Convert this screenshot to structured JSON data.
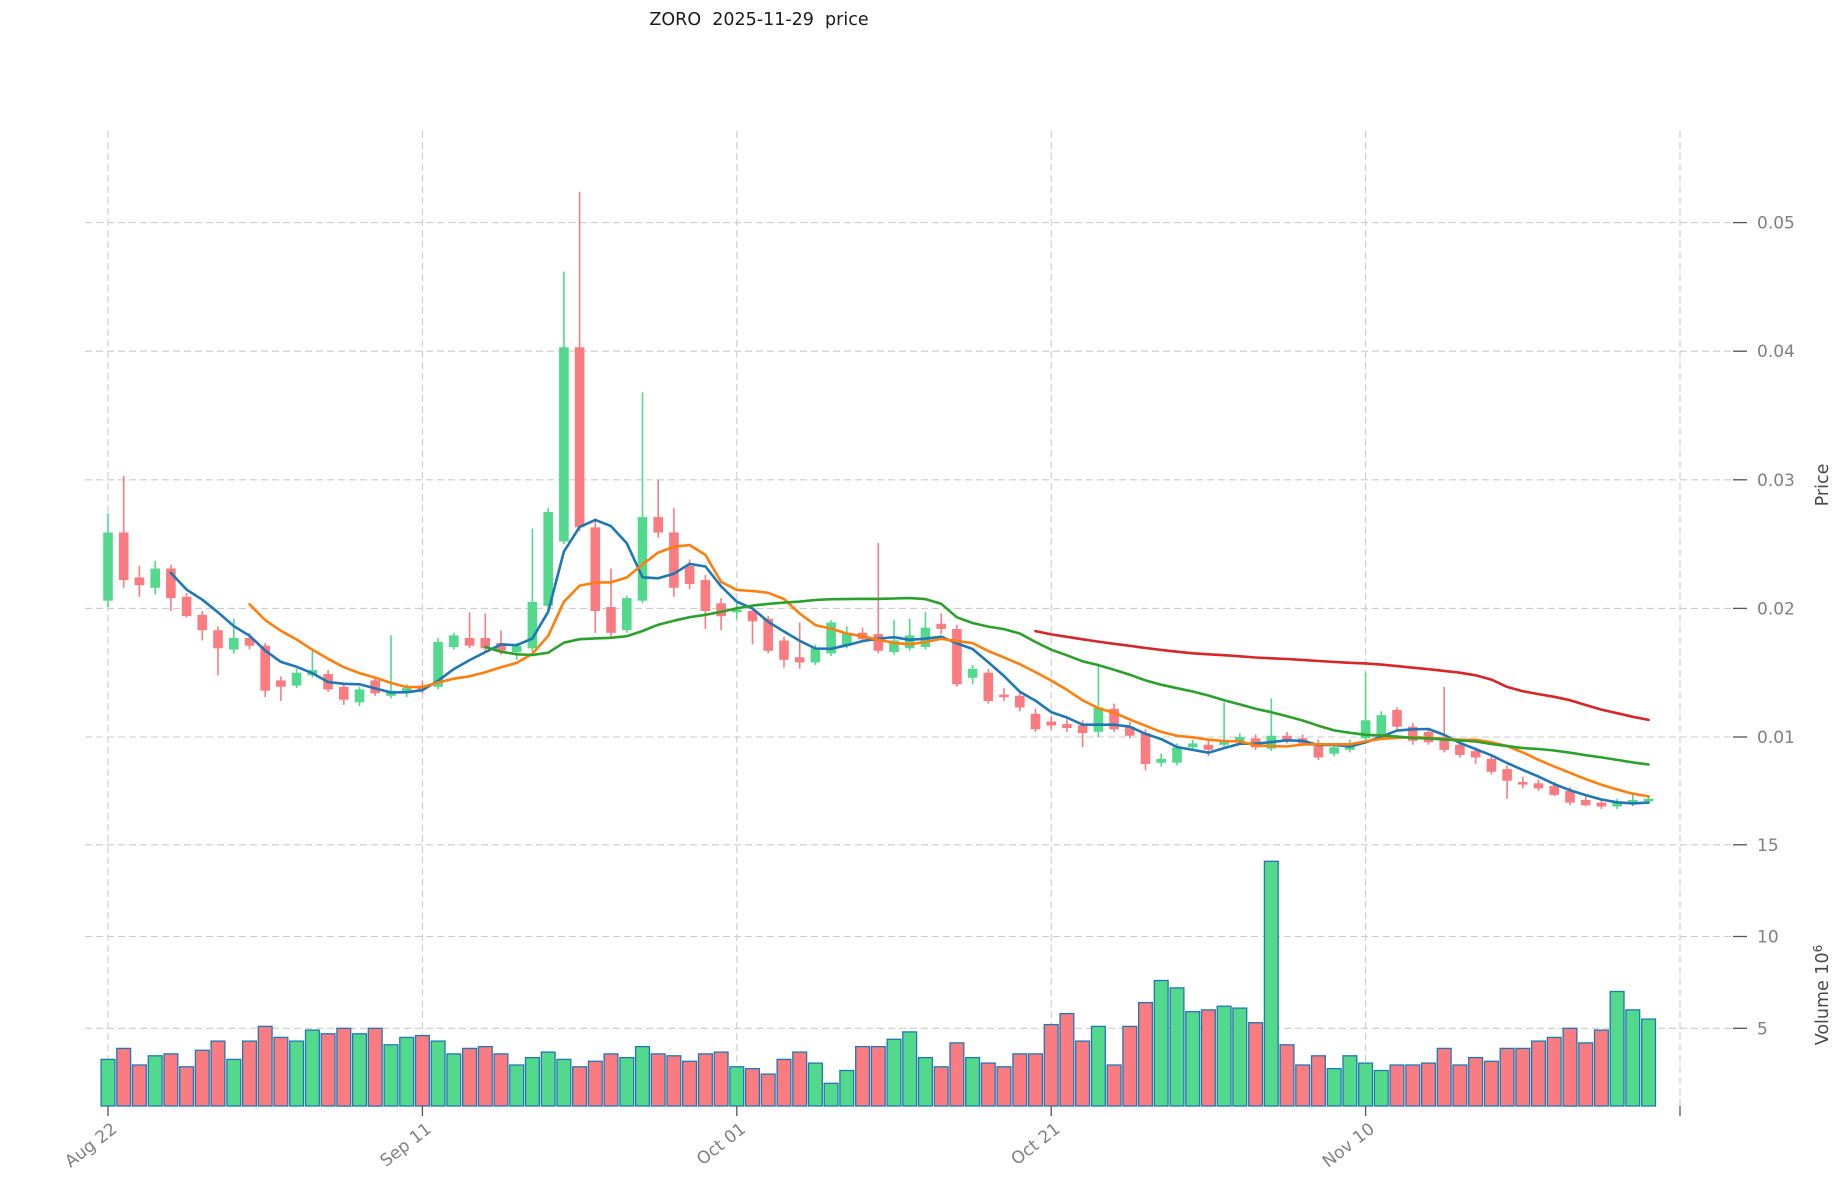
{
  "title": "ZORO  2025-11-29  price",
  "chart_data": {
    "type": "candlestick",
    "symbol": "ZORO",
    "as_of_date": "2025-11-29",
    "start_date": "2025-08-22",
    "freq": "daily",
    "title": "ZORO  2025-11-29  price",
    "grid": true,
    "legend_position": "none",
    "x_axis": {
      "ticks": [
        {
          "i": 0,
          "label": "Aug 22"
        },
        {
          "i": 20,
          "label": "Sep 11"
        },
        {
          "i": 40,
          "label": "Oct 01"
        },
        {
          "i": 60,
          "label": "Oct 21"
        },
        {
          "i": 80,
          "label": "Nov 10"
        },
        {
          "i": 100,
          "label": ""
        }
      ],
      "xlim": [
        -1.5,
        100.5
      ]
    },
    "price_axis": {
      "label": "Price",
      "side": "right",
      "ticks": [
        0.01,
        0.02,
        0.03,
        0.04,
        0.05
      ],
      "tick_labels": [
        "0.01",
        "0.02",
        "0.03",
        "0.04",
        "0.05"
      ],
      "ylim": [
        0.004,
        0.0572
      ]
    },
    "volume_axis": {
      "label": "Volume",
      "scale_base": "10",
      "scale_exponent": "6",
      "side": "right",
      "ticks": [
        5,
        10,
        15
      ],
      "tick_labels": [
        "5",
        "10",
        "15"
      ],
      "ylim": [
        0.8,
        16.4
      ]
    },
    "moving_averages": [
      {
        "name": "MA5",
        "window": 5,
        "color": "#1f77b4"
      },
      {
        "name": "MA10",
        "window": 10,
        "color": "#ff7f0e"
      },
      {
        "name": "MA25",
        "window": 25,
        "color": "#2ca02c"
      },
      {
        "name": "MA60",
        "window": 60,
        "color": "#d62728"
      }
    ],
    "style": {
      "up_color": "#52d98c",
      "down_color": "#fa7b80",
      "volume_edge_color": "#2077b4",
      "grid_color": "#cccccc",
      "tick_label_color": "#808080",
      "axis_label_color": "#4a4a4a",
      "title_color": "#1a1a1a"
    },
    "columns": [
      "open",
      "high",
      "low",
      "close",
      "volume_millions"
    ],
    "candles": [
      [
        0.0206,
        0.0274,
        0.0201,
        0.0259,
        3.3
      ],
      [
        0.0259,
        0.0303,
        0.0216,
        0.0222,
        3.9
      ],
      [
        0.0224,
        0.0233,
        0.0209,
        0.0218,
        3.0
      ],
      [
        0.0216,
        0.0237,
        0.0211,
        0.0231,
        3.5
      ],
      [
        0.0231,
        0.0234,
        0.0198,
        0.0208,
        3.6
      ],
      [
        0.0209,
        0.0212,
        0.0193,
        0.0194,
        2.9
      ],
      [
        0.0195,
        0.0198,
        0.0175,
        0.0183,
        3.8
      ],
      [
        0.0183,
        0.0186,
        0.0148,
        0.0169,
        4.3
      ],
      [
        0.0168,
        0.0192,
        0.0165,
        0.0177,
        3.3
      ],
      [
        0.0177,
        0.0181,
        0.0168,
        0.0171,
        4.3
      ],
      [
        0.0171,
        0.0173,
        0.0131,
        0.0136,
        5.1
      ],
      [
        0.0144,
        0.0147,
        0.0128,
        0.0139,
        4.5
      ],
      [
        0.014,
        0.0153,
        0.0138,
        0.015,
        4.3
      ],
      [
        0.0148,
        0.0167,
        0.0146,
        0.0152,
        4.9
      ],
      [
        0.0149,
        0.0152,
        0.0135,
        0.0137,
        4.7
      ],
      [
        0.0139,
        0.0142,
        0.0125,
        0.0129,
        5.0
      ],
      [
        0.0127,
        0.0139,
        0.0124,
        0.0137,
        4.7
      ],
      [
        0.0144,
        0.0147,
        0.0132,
        0.0134,
        5.0
      ],
      [
        0.0132,
        0.0179,
        0.013,
        0.0136,
        4.1
      ],
      [
        0.0134,
        0.0141,
        0.0131,
        0.0138,
        4.5
      ],
      [
        0.014,
        0.0144,
        0.0134,
        0.0137,
        4.6
      ],
      [
        0.0139,
        0.0177,
        0.0137,
        0.0174,
        4.3
      ],
      [
        0.017,
        0.0181,
        0.0168,
        0.0179,
        3.6
      ],
      [
        0.0177,
        0.0197,
        0.0169,
        0.0171,
        3.9
      ],
      [
        0.0177,
        0.0196,
        0.0167,
        0.0169,
        4.0
      ],
      [
        0.0173,
        0.0183,
        0.0164,
        0.0167,
        3.6
      ],
      [
        0.0166,
        0.0173,
        0.016,
        0.0171,
        3.0
      ],
      [
        0.0169,
        0.0262,
        0.0166,
        0.0205,
        3.4
      ],
      [
        0.0202,
        0.0278,
        0.02,
        0.0275,
        3.7
      ],
      [
        0.0252,
        0.0462,
        0.025,
        0.0403,
        3.3
      ],
      [
        0.0403,
        0.0524,
        0.026,
        0.0263,
        2.9
      ],
      [
        0.0263,
        0.027,
        0.0181,
        0.0198,
        3.2
      ],
      [
        0.0201,
        0.0231,
        0.0178,
        0.0181,
        3.6
      ],
      [
        0.0183,
        0.021,
        0.0181,
        0.0208,
        3.4
      ],
      [
        0.0206,
        0.0368,
        0.0204,
        0.0271,
        4.0
      ],
      [
        0.0271,
        0.03,
        0.0255,
        0.0259,
        3.6
      ],
      [
        0.0259,
        0.0278,
        0.0209,
        0.0216,
        3.5
      ],
      [
        0.0233,
        0.0238,
        0.0215,
        0.0219,
        3.2
      ],
      [
        0.0222,
        0.0226,
        0.0184,
        0.0198,
        3.6
      ],
      [
        0.0204,
        0.0208,
        0.0183,
        0.0194,
        3.7
      ],
      [
        0.0197,
        0.0205,
        0.0192,
        0.0199,
        2.9
      ],
      [
        0.0198,
        0.0201,
        0.0172,
        0.019,
        2.8
      ],
      [
        0.0192,
        0.0194,
        0.0165,
        0.0167,
        2.5
      ],
      [
        0.0175,
        0.0178,
        0.0154,
        0.016,
        3.3
      ],
      [
        0.0162,
        0.0189,
        0.0153,
        0.0158,
        3.7
      ],
      [
        0.0158,
        0.0172,
        0.0156,
        0.0169,
        3.1
      ],
      [
        0.0165,
        0.0191,
        0.0163,
        0.0189,
        2.0
      ],
      [
        0.0171,
        0.0186,
        0.0169,
        0.0181,
        2.7
      ],
      [
        0.0181,
        0.0185,
        0.0174,
        0.0176,
        4.0
      ],
      [
        0.018,
        0.0251,
        0.0165,
        0.0167,
        4.0
      ],
      [
        0.0166,
        0.0191,
        0.0164,
        0.0175,
        4.4
      ],
      [
        0.0169,
        0.0192,
        0.0167,
        0.0179,
        4.8
      ],
      [
        0.017,
        0.0197,
        0.0168,
        0.0185,
        3.4
      ],
      [
        0.0188,
        0.0196,
        0.018,
        0.0184,
        2.9
      ],
      [
        0.0184,
        0.0187,
        0.0139,
        0.0141,
        4.2
      ],
      [
        0.0146,
        0.0156,
        0.0141,
        0.0153,
        3.4
      ],
      [
        0.015,
        0.0153,
        0.0126,
        0.0128,
        3.1
      ],
      [
        0.0133,
        0.0138,
        0.0128,
        0.0131,
        2.9
      ],
      [
        0.0132,
        0.0135,
        0.012,
        0.0123,
        3.6
      ],
      [
        0.0118,
        0.0122,
        0.0104,
        0.0106,
        3.6
      ],
      [
        0.0112,
        0.0116,
        0.0106,
        0.0109,
        5.2
      ],
      [
        0.011,
        0.0115,
        0.0104,
        0.0107,
        5.8
      ],
      [
        0.0109,
        0.0113,
        0.0092,
        0.0103,
        4.3
      ],
      [
        0.0104,
        0.0157,
        0.01,
        0.0123,
        5.1
      ],
      [
        0.0122,
        0.0126,
        0.0104,
        0.0106,
        3.0
      ],
      [
        0.0108,
        0.0112,
        0.0099,
        0.0101,
        5.1
      ],
      [
        0.0103,
        0.0106,
        0.0074,
        0.0079,
        6.4
      ],
      [
        0.008,
        0.0087,
        0.0077,
        0.0083,
        7.6
      ],
      [
        0.008,
        0.0095,
        0.0078,
        0.0092,
        7.2
      ],
      [
        0.0092,
        0.0098,
        0.009,
        0.0095,
        5.9
      ],
      [
        0.0094,
        0.0097,
        0.0085,
        0.009,
        6.0
      ],
      [
        0.0094,
        0.0127,
        0.0092,
        0.0097,
        6.2
      ],
      [
        0.0096,
        0.0103,
        0.0094,
        0.01,
        6.1
      ],
      [
        0.0099,
        0.0102,
        0.009,
        0.0092,
        5.3
      ],
      [
        0.0091,
        0.013,
        0.0089,
        0.0101,
        14.1
      ],
      [
        0.0101,
        0.0104,
        0.0095,
        0.0097,
        4.1
      ],
      [
        0.0099,
        0.0102,
        0.0093,
        0.0095,
        3.0
      ],
      [
        0.0095,
        0.0098,
        0.0082,
        0.0084,
        3.5
      ],
      [
        0.0087,
        0.0094,
        0.0085,
        0.0092,
        2.8
      ],
      [
        0.009,
        0.0098,
        0.0088,
        0.0095,
        3.5
      ],
      [
        0.0099,
        0.015,
        0.0096,
        0.0113,
        3.1
      ],
      [
        0.0101,
        0.012,
        0.0099,
        0.0117,
        2.7
      ],
      [
        0.0121,
        0.0123,
        0.0106,
        0.0108,
        3.0
      ],
      [
        0.0108,
        0.0111,
        0.0094,
        0.0097,
        3.0
      ],
      [
        0.0104,
        0.0107,
        0.0094,
        0.0096,
        3.1
      ],
      [
        0.0098,
        0.0139,
        0.0088,
        0.009,
        3.9
      ],
      [
        0.0094,
        0.0097,
        0.0084,
        0.0086,
        3.0
      ],
      [
        0.0089,
        0.0092,
        0.0079,
        0.0084,
        3.4
      ],
      [
        0.0083,
        0.0086,
        0.0071,
        0.0073,
        3.2
      ],
      [
        0.0075,
        0.0078,
        0.0052,
        0.0066,
        3.9
      ],
      [
        0.0065,
        0.0069,
        0.006,
        0.0063,
        3.9
      ],
      [
        0.0064,
        0.0067,
        0.0058,
        0.006,
        4.3
      ],
      [
        0.0062,
        0.0065,
        0.0054,
        0.0055,
        4.5
      ],
      [
        0.0058,
        0.0061,
        0.0047,
        0.0049,
        5.0
      ],
      [
        0.0051,
        0.0054,
        0.0046,
        0.0047,
        4.2
      ],
      [
        0.0049,
        0.0052,
        0.0044,
        0.0046,
        4.9
      ],
      [
        0.0046,
        0.0052,
        0.0044,
        0.0049,
        7.0
      ],
      [
        0.0048,
        0.0055,
        0.0046,
        0.0051,
        6.0
      ],
      [
        0.005,
        0.0054,
        0.0048,
        0.0052,
        5.5
      ]
    ]
  }
}
